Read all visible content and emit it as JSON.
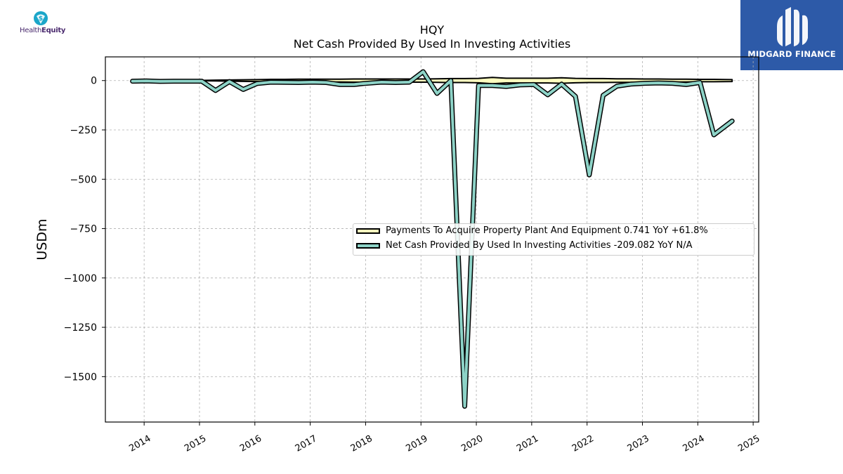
{
  "logos": {
    "left": {
      "name": "HealthEquity",
      "text_main": "Health",
      "text_bold": "Equity",
      "icon": "dollar-shield-icon",
      "color": "#1ba6c9"
    },
    "right": {
      "name": "MIDGARD FINANCE",
      "icon": "midgard-m-icon",
      "background": "#2d5aa8"
    }
  },
  "chart_data": {
    "type": "line",
    "title": "HQY",
    "subtitle": "Net Cash Provided By Used In Investing Activities",
    "ylabel": "USDm",
    "xlabel": "",
    "ylim": [
      -1730,
      120
    ],
    "xlim": [
      2013.3,
      2025.1
    ],
    "xticks": [
      "2014",
      "2015",
      "2016",
      "2017",
      "2018",
      "2019",
      "2020",
      "2021",
      "2022",
      "2023",
      "2024",
      "2025"
    ],
    "yticks": [
      "0",
      "−250",
      "−500",
      "−750",
      "−1000",
      "−1250",
      "−1500"
    ],
    "ytick_values": [
      0,
      -250,
      -500,
      -750,
      -1000,
      -1250,
      -1500
    ],
    "grid": true,
    "legend_placement": "center-right",
    "series": [
      {
        "name": "Payments To Acquire Property Plant And Equipment",
        "legend_suffix": "0.741 YoY +61.8%",
        "fill_color": "#ffffbf",
        "points": [
          [
            2013.79,
            1
          ],
          [
            2014.04,
            1
          ],
          [
            2014.29,
            1
          ],
          [
            2014.54,
            1
          ],
          [
            2014.79,
            1
          ],
          [
            2015.04,
            1
          ],
          [
            2015.29,
            2
          ],
          [
            2015.54,
            3
          ],
          [
            2015.79,
            4
          ],
          [
            2016.04,
            5
          ],
          [
            2016.29,
            6
          ],
          [
            2016.54,
            6
          ],
          [
            2016.79,
            7
          ],
          [
            2017.04,
            7
          ],
          [
            2017.29,
            7
          ],
          [
            2017.54,
            7
          ],
          [
            2017.79,
            8
          ],
          [
            2018.04,
            8
          ],
          [
            2018.29,
            8
          ],
          [
            2018.54,
            8
          ],
          [
            2018.79,
            8
          ],
          [
            2019.04,
            8
          ],
          [
            2019.29,
            9
          ],
          [
            2019.54,
            10
          ],
          [
            2019.79,
            10
          ],
          [
            2020.04,
            11
          ],
          [
            2020.29,
            16
          ],
          [
            2020.54,
            12
          ],
          [
            2020.79,
            12
          ],
          [
            2021.04,
            12
          ],
          [
            2021.29,
            12
          ],
          [
            2021.54,
            14
          ],
          [
            2021.79,
            11
          ],
          [
            2022.04,
            10
          ],
          [
            2022.29,
            10
          ],
          [
            2022.54,
            9
          ],
          [
            2022.79,
            9
          ],
          [
            2023.04,
            8
          ],
          [
            2023.29,
            8
          ],
          [
            2023.54,
            7
          ],
          [
            2023.79,
            7
          ],
          [
            2024.04,
            6
          ],
          [
            2024.29,
            6
          ],
          [
            2024.62,
            5
          ]
        ]
      },
      {
        "name": "Net Cash Provided By Used In Investing Activities",
        "legend_suffix": "-209.082 YoY N/A",
        "line_color": "#8dd3c7",
        "points": [
          [
            2013.79,
            -3
          ],
          [
            2014.04,
            -2
          ],
          [
            2014.29,
            -4
          ],
          [
            2014.54,
            -3
          ],
          [
            2014.79,
            -3
          ],
          [
            2015.04,
            -3
          ],
          [
            2015.29,
            -50
          ],
          [
            2015.54,
            -5
          ],
          [
            2015.79,
            -45
          ],
          [
            2016.04,
            -15
          ],
          [
            2016.29,
            -8
          ],
          [
            2016.54,
            -9
          ],
          [
            2016.79,
            -10
          ],
          [
            2017.04,
            -8
          ],
          [
            2017.29,
            -10
          ],
          [
            2017.54,
            -20
          ],
          [
            2017.79,
            -20
          ],
          [
            2017.96,
            -15
          ],
          [
            2018.29,
            -8
          ],
          [
            2018.54,
            -10
          ],
          [
            2018.79,
            -8
          ],
          [
            2019.04,
            45
          ],
          [
            2019.29,
            -65
          ],
          [
            2019.54,
            0
          ],
          [
            2019.79,
            -1650
          ],
          [
            2020.04,
            -25
          ],
          [
            2020.29,
            -25
          ],
          [
            2020.54,
            -30
          ],
          [
            2020.79,
            -22
          ],
          [
            2021.04,
            -20
          ],
          [
            2021.29,
            -72
          ],
          [
            2021.54,
            -18
          ],
          [
            2021.79,
            -80
          ],
          [
            2022.04,
            -478
          ],
          [
            2022.29,
            -75
          ],
          [
            2022.54,
            -28
          ],
          [
            2022.79,
            -18
          ],
          [
            2023.04,
            -14
          ],
          [
            2023.29,
            -12
          ],
          [
            2023.54,
            -14
          ],
          [
            2023.79,
            -20
          ],
          [
            2024.04,
            -10
          ],
          [
            2024.29,
            -275
          ],
          [
            2024.62,
            -205
          ]
        ]
      }
    ]
  }
}
